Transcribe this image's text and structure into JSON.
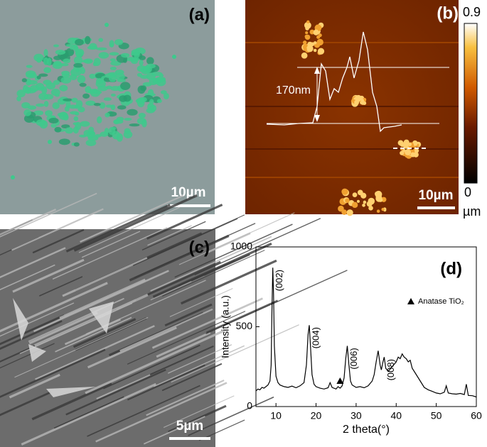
{
  "panels": {
    "a": {
      "label": "(a)",
      "scale_bar": "10µm"
    },
    "b": {
      "label": "(b)",
      "scale_bar": "10µm",
      "height_annotation": "170nm",
      "colorbar": {
        "max": "0.9",
        "min": "0",
        "unit": "µm"
      }
    },
    "c": {
      "label": "(c)",
      "scale_bar": "5µm"
    }
  },
  "chart_data": {
    "type": "line",
    "label": "(d)",
    "x_label": "2 theta(°)",
    "y_label": "Intensity (a.u.)",
    "legend": "Anatase TiO₂",
    "color": "#000000",
    "xlim": [
      5,
      60
    ],
    "ylim": [
      0,
      1000
    ],
    "xticks": [
      10,
      20,
      30,
      40,
      50,
      60
    ],
    "yticks": [
      0,
      500,
      1000
    ],
    "x": [
      5,
      5.5,
      6,
      6.5,
      7,
      7.5,
      8,
      8.5,
      8.8,
      9.0,
      9.2,
      9.4,
      9.6,
      10,
      10.5,
      11,
      12,
      13,
      14,
      15,
      16,
      17,
      17.6,
      18.0,
      18.3,
      18.6,
      19,
      19.5,
      20,
      21,
      22,
      23,
      23.5,
      24,
      25,
      25.5,
      26,
      26.5,
      27,
      27.4,
      27.8,
      28.2,
      28.6,
      29,
      30,
      31,
      32,
      33,
      34,
      34.5,
      35,
      35.5,
      36,
      36.3,
      36.7,
      37,
      37.4,
      38,
      39,
      40,
      40.5,
      41,
      41.5,
      42,
      42.5,
      43,
      43.5,
      44,
      45,
      46,
      47,
      48,
      49,
      50,
      51,
      52,
      52.5,
      53,
      54,
      55,
      56,
      57,
      57.5,
      58,
      59,
      60
    ],
    "values": [
      98,
      110,
      105,
      120,
      115,
      125,
      135,
      160,
      260,
      600,
      870,
      700,
      380,
      190,
      150,
      135,
      125,
      120,
      128,
      118,
      130,
      150,
      260,
      450,
      510,
      380,
      200,
      140,
      125,
      115,
      110,
      118,
      150,
      120,
      110,
      125,
      115,
      130,
      180,
      300,
      380,
      260,
      160,
      135,
      120,
      125,
      118,
      130,
      160,
      200,
      280,
      350,
      260,
      230,
      280,
      310,
      240,
      220,
      250,
      280,
      310,
      300,
      330,
      310,
      300,
      280,
      290,
      240,
      200,
      160,
      120,
      105,
      95,
      85,
      80,
      90,
      130,
      85,
      80,
      78,
      82,
      75,
      140,
      70,
      68,
      60
    ],
    "peaks": [
      {
        "label": "(002)",
        "x": 9.2
      },
      {
        "label": "(004)",
        "x": 18.3
      },
      {
        "label": "(006)",
        "x": 27.8
      },
      {
        "label": "(008)",
        "x": 37
      }
    ],
    "anatase_marker": {
      "x": 26,
      "y": 160
    }
  }
}
